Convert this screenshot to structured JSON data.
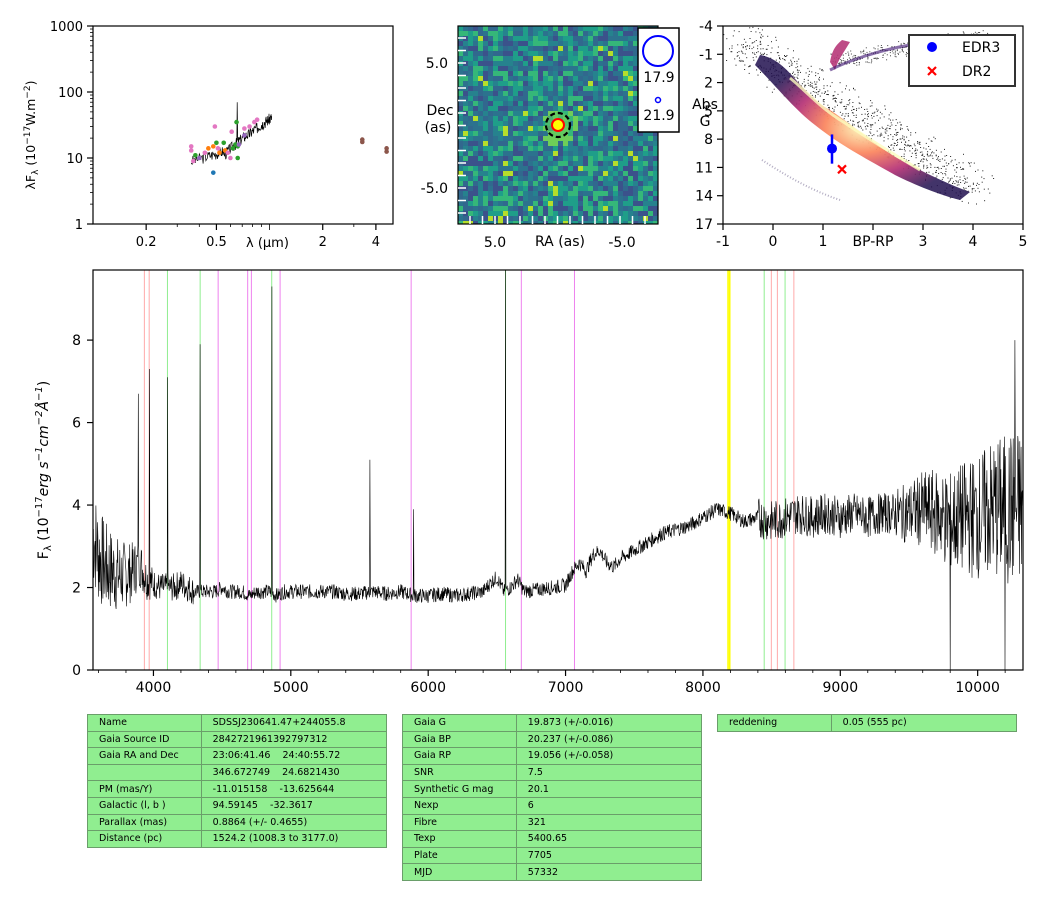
{
  "sed": {
    "ylabel": "λF_λ (10^-17 W.m^-2)",
    "xlabel": "λ (μm)",
    "yticks": [
      "1",
      "10",
      "100",
      "1000"
    ],
    "xticks": [
      "0.2",
      "0.5",
      "2",
      "4"
    ],
    "colors": [
      "#e377c2",
      "#ff7f0e",
      "#2ca02c",
      "#1f77b4",
      "#8c564b",
      "#9467bd"
    ],
    "points": [
      {
        "x": 0.36,
        "y": 15,
        "c": 0
      },
      {
        "x": 0.36,
        "y": 13,
        "c": 0
      },
      {
        "x": 0.37,
        "y": 9,
        "c": 0
      },
      {
        "x": 0.38,
        "y": 11,
        "c": 2
      },
      {
        "x": 0.4,
        "y": 10,
        "c": 5
      },
      {
        "x": 0.43,
        "y": 12,
        "c": 0
      },
      {
        "x": 0.45,
        "y": 14,
        "c": 1
      },
      {
        "x": 0.48,
        "y": 15,
        "c": 1
      },
      {
        "x": 0.48,
        "y": 6,
        "c": 3
      },
      {
        "x": 0.49,
        "y": 30,
        "c": 0
      },
      {
        "x": 0.5,
        "y": 17,
        "c": 2
      },
      {
        "x": 0.51,
        "y": 14,
        "c": 0
      },
      {
        "x": 0.52,
        "y": 12,
        "c": 1
      },
      {
        "x": 0.55,
        "y": 17,
        "c": 2
      },
      {
        "x": 0.56,
        "y": 13,
        "c": 1
      },
      {
        "x": 0.58,
        "y": 12,
        "c": 0
      },
      {
        "x": 0.6,
        "y": 10,
        "c": 0
      },
      {
        "x": 0.61,
        "y": 25,
        "c": 0
      },
      {
        "x": 0.62,
        "y": 14,
        "c": 2
      },
      {
        "x": 0.64,
        "y": 16,
        "c": 2
      },
      {
        "x": 0.65,
        "y": 35,
        "c": 2
      },
      {
        "x": 0.66,
        "y": 15,
        "c": 2
      },
      {
        "x": 0.66,
        "y": 10,
        "c": 2
      },
      {
        "x": 0.67,
        "y": 16,
        "c": 5
      },
      {
        "x": 0.72,
        "y": 28,
        "c": 0
      },
      {
        "x": 0.72,
        "y": 22,
        "c": 5
      },
      {
        "x": 0.77,
        "y": 30,
        "c": 0
      },
      {
        "x": 0.82,
        "y": 35,
        "c": 0
      },
      {
        "x": 0.85,
        "y": 38,
        "c": 0
      },
      {
        "x": 3.35,
        "y": 19,
        "c": 4
      },
      {
        "x": 3.35,
        "y": 17.5,
        "c": 4
      },
      {
        "x": 4.6,
        "y": 14,
        "c": 4
      },
      {
        "x": 4.6,
        "y": 12.5,
        "c": 4
      }
    ]
  },
  "image": {
    "ylabel": [
      "Dec",
      "(as)"
    ],
    "xlabel": "RA (as)",
    "yticks": [
      "5.0",
      "-5.0"
    ],
    "xticks": [
      "5.0",
      "-5.0"
    ],
    "scale_labels": [
      "17.9",
      "21.9"
    ]
  },
  "hrd": {
    "ylabel": [
      "Abs",
      "G"
    ],
    "xlabel": "BP-RP",
    "yticks": [
      "-4",
      "-1",
      "2",
      "5",
      "8",
      "11",
      "14",
      "17"
    ],
    "xticks": [
      "-1",
      "0",
      "1",
      "2",
      "3",
      "4",
      "5"
    ],
    "legend": [
      {
        "label": "EDR3",
        "color": "#0000ff",
        "marker": "circle"
      },
      {
        "label": "DR2",
        "color": "#ff0000",
        "marker": "x"
      }
    ],
    "edr3": {
      "x": 1.18,
      "y": 9.0,
      "yerr": [
        7.5,
        10.6
      ]
    },
    "dr2": {
      "x": 1.38,
      "y": 11.2
    }
  },
  "chart_data": [
    {
      "type": "line",
      "ylabel": "F_λ (10^-17 erg s^-1 cm^-2 Å^-1)",
      "xlim": [
        3560,
        10330
      ],
      "ylim": [
        0,
        9.7
      ],
      "xticks": [
        "4000",
        "5000",
        "6000",
        "7000",
        "8000",
        "9000",
        "10000"
      ],
      "yticks": [
        "0",
        "2",
        "4",
        "6",
        "8"
      ],
      "series": [
        {
          "x": [
            3560,
            3600,
            3650,
            3700,
            3750,
            3800,
            3850,
            3900,
            3950,
            4000,
            4050,
            4100,
            4150,
            4200,
            4250,
            4300,
            4350,
            4400,
            4450,
            4500,
            4550,
            4600,
            4650,
            4700,
            4750,
            4800,
            4850,
            4900,
            4950,
            5000,
            5100,
            5200,
            5300,
            5400,
            5500,
            5600,
            5700,
            5800,
            5900,
            6000,
            6100,
            6200,
            6300,
            6400,
            6450,
            6500,
            6550,
            6600,
            6650,
            6700,
            6800,
            6900,
            7000,
            7050,
            7100,
            7150,
            7200,
            7250,
            7300,
            7350,
            7400,
            7500,
            7600,
            7700,
            7800,
            7900,
            8000,
            8100,
            8200,
            8300,
            8400,
            8500,
            8600,
            8700,
            8800,
            8900,
            9000,
            9100,
            9200,
            9300,
            9400,
            9500,
            9600,
            9700,
            9800,
            9900,
            10000,
            10100,
            10200,
            10300
          ],
          "y": [
            3.3,
            2.8,
            2.5,
            2.4,
            2.3,
            2.3,
            2.4,
            2.6,
            2.2,
            2.1,
            2.0,
            2.0,
            2.0,
            2.1,
            2.0,
            1.9,
            1.9,
            1.9,
            1.9,
            2.0,
            1.9,
            1.9,
            1.9,
            1.8,
            1.9,
            1.9,
            1.9,
            1.8,
            1.9,
            1.9,
            1.9,
            1.9,
            1.9,
            1.85,
            1.85,
            1.9,
            1.85,
            1.9,
            1.8,
            1.8,
            1.85,
            1.8,
            1.85,
            1.9,
            2.1,
            2.25,
            1.9,
            2.0,
            2.2,
            1.9,
            1.95,
            2.0,
            2.05,
            2.4,
            2.6,
            2.4,
            2.8,
            2.9,
            2.6,
            2.5,
            2.7,
            2.9,
            3.1,
            3.3,
            3.4,
            3.5,
            3.7,
            3.9,
            3.8,
            3.6,
            3.7,
            3.6,
            3.7,
            3.8,
            3.7,
            3.8,
            3.7,
            3.8,
            3.7,
            3.8,
            3.8,
            3.8,
            3.9,
            3.8,
            3.6,
            3.7,
            3.7,
            3.9,
            3.9,
            3.9
          ]
        }
      ],
      "spikes": [
        {
          "x": 3890,
          "y": 6.7
        },
        {
          "x": 3970,
          "y": 7.3
        },
        {
          "x": 4102,
          "y": 7.1
        },
        {
          "x": 4341,
          "y": 7.9
        },
        {
          "x": 4861,
          "y": 9.3
        },
        {
          "x": 5577,
          "y": 5.1
        },
        {
          "x": 5893,
          "y": 3.9
        },
        {
          "x": 6563,
          "y": 9.7
        },
        {
          "x": 9800,
          "y": 0.0
        },
        {
          "x": 10200,
          "y": 0.0
        },
        {
          "x": 10270,
          "y": 8.0
        }
      ],
      "lines": [
        {
          "x": 3934,
          "color": "#ffaaaa"
        },
        {
          "x": 3969,
          "color": "#ffaaaa"
        },
        {
          "x": 4102,
          "color": "#90ee90"
        },
        {
          "x": 4340,
          "color": "#90ee90"
        },
        {
          "x": 4471,
          "color": "#ee82ee"
        },
        {
          "x": 4686,
          "color": "#ee82ee"
        },
        {
          "x": 4713,
          "color": "#ee82ee"
        },
        {
          "x": 4861,
          "color": "#90ee90"
        },
        {
          "x": 4922,
          "color": "#ee82ee"
        },
        {
          "x": 5876,
          "color": "#ee82ee"
        },
        {
          "x": 6563,
          "color": "#90ee90"
        },
        {
          "x": 6678,
          "color": "#ee82ee"
        },
        {
          "x": 7065,
          "color": "#ee82ee"
        },
        {
          "x": 8183,
          "color": "#ffff00"
        },
        {
          "x": 8195,
          "color": "#ffff00"
        },
        {
          "x": 8446,
          "color": "#90ee90"
        },
        {
          "x": 8498,
          "color": "#ffaaaa"
        },
        {
          "x": 8542,
          "color": "#ffaaaa"
        },
        {
          "x": 8598,
          "color": "#90ee90"
        },
        {
          "x": 8662,
          "color": "#ffaaaa"
        }
      ]
    }
  ],
  "tables": {
    "left": [
      [
        "Name",
        "SDSSJ230641.47+244055.8"
      ],
      [
        "Gaia Source ID",
        "2842721961392797312"
      ],
      [
        "Gaia RA and Dec",
        "23:06:41.46    24:40:55.72"
      ],
      [
        "",
        "346.672749    24.6821430"
      ],
      [
        "PM (mas/Y)",
        "-11.015158    -13.625644"
      ],
      [
        "Galactic (l, b )",
        "94.59145    -32.3617"
      ],
      [
        "Parallax (mas)",
        "0.8864 (+/- 0.4655)"
      ],
      [
        "Distance (pc)",
        "1524.2 (1008.3 to 3177.0)"
      ]
    ],
    "middle": [
      [
        "Gaia G",
        "19.873 (+/-0.016)"
      ],
      [
        "Gaia BP",
        "20.237 (+/-0.086)"
      ],
      [
        "Gaia RP",
        "19.056 (+/-0.058)"
      ],
      [
        "SNR",
        "7.5"
      ],
      [
        "Synthetic G mag",
        "20.1"
      ],
      [
        "Nexp",
        "6"
      ],
      [
        "Fibre",
        "321"
      ],
      [
        "Texp",
        "5400.65"
      ],
      [
        "Plate",
        "7705"
      ],
      [
        "MJD",
        "57332"
      ]
    ],
    "right": [
      [
        "reddening",
        "0.05 (555 pc)"
      ]
    ]
  }
}
